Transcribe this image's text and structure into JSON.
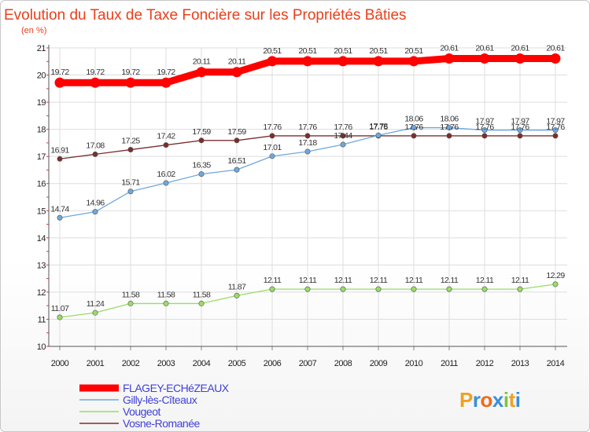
{
  "chart_data": {
    "type": "line",
    "title": "Evolution du Taux de Taxe Foncière sur les Propriétés Bâties",
    "subtitle": "(en %)",
    "x": [
      "2000",
      "2001",
      "2002",
      "2003",
      "2004",
      "2005",
      "2006",
      "2007",
      "2008",
      "2009",
      "2010",
      "2011",
      "2012",
      "2013",
      "2014"
    ],
    "ylim": [
      10,
      21
    ],
    "yticks": [
      "10",
      "11",
      "12",
      "13",
      "14",
      "15",
      "16",
      "17",
      "18",
      "19",
      "20",
      "21"
    ],
    "grid": true,
    "legend_position": "bottom-left",
    "series": [
      {
        "name": "FLAGEY-ECHéZEAUX",
        "color": "#ff0000",
        "values": [
          19.72,
          19.72,
          19.72,
          19.72,
          20.11,
          20.11,
          20.51,
          20.51,
          20.51,
          20.51,
          20.51,
          20.61,
          20.61,
          20.61,
          20.61
        ],
        "labels": [
          "19.72",
          "19.72",
          "19.72",
          "19.72",
          "20.11",
          "20.11",
          "20.51",
          "20.51",
          "20.51",
          "20.51",
          "20.51",
          "20.61",
          "20.61",
          "20.61",
          "20.61"
        ]
      },
      {
        "name": "Gilly-lès-Cîteaux",
        "color": "#6fa8dc",
        "values": [
          14.74,
          14.96,
          15.71,
          16.02,
          16.35,
          16.51,
          17.01,
          17.18,
          17.44,
          17.78,
          18.06,
          18.06,
          17.97,
          17.97,
          17.97
        ],
        "labels": [
          "14.74",
          "14.96",
          "15.71",
          "16.02",
          "16.35",
          "16.51",
          "17.01",
          "17.18",
          "17.44",
          "17.78",
          "18.06",
          "18.06",
          "17.97",
          "17.97",
          "17.97"
        ]
      },
      {
        "name": "Vougeot",
        "color": "#99dd66",
        "values": [
          11.07,
          11.24,
          11.58,
          11.58,
          11.58,
          11.87,
          12.11,
          12.11,
          12.11,
          12.11,
          12.11,
          12.11,
          12.11,
          12.11,
          12.29
        ],
        "labels": [
          "11.07",
          "11.24",
          "11.58",
          "11.58",
          "11.58",
          "11.87",
          "12.11",
          "12.11",
          "12.11",
          "12.11",
          "12.11",
          "12.11",
          "12.11",
          "12.11",
          "12.29"
        ]
      },
      {
        "name": "Vosne-Romanée",
        "color": "#7a2e2e",
        "values": [
          16.91,
          17.08,
          17.25,
          17.42,
          17.59,
          17.59,
          17.76,
          17.76,
          17.76,
          17.76,
          17.76,
          17.76,
          17.76,
          17.76,
          17.76
        ],
        "labels": [
          "16.91",
          "17.08",
          "17.25",
          "17.42",
          "17.59",
          "17.59",
          "17.76",
          "17.76",
          "17.76",
          "17.76",
          "17.76",
          "17.76",
          "17.76",
          "17.76",
          "17.76"
        ]
      }
    ]
  },
  "logo": {
    "text": "Proxiti",
    "letters": [
      "P",
      "r",
      "o",
      "x",
      "i",
      "t",
      "i"
    ],
    "colors": [
      "#f0a020",
      "#3a8edb",
      "#f06a1a",
      "#3a8edb",
      "#7cc242",
      "#f0a020",
      "#3a8edb"
    ]
  }
}
